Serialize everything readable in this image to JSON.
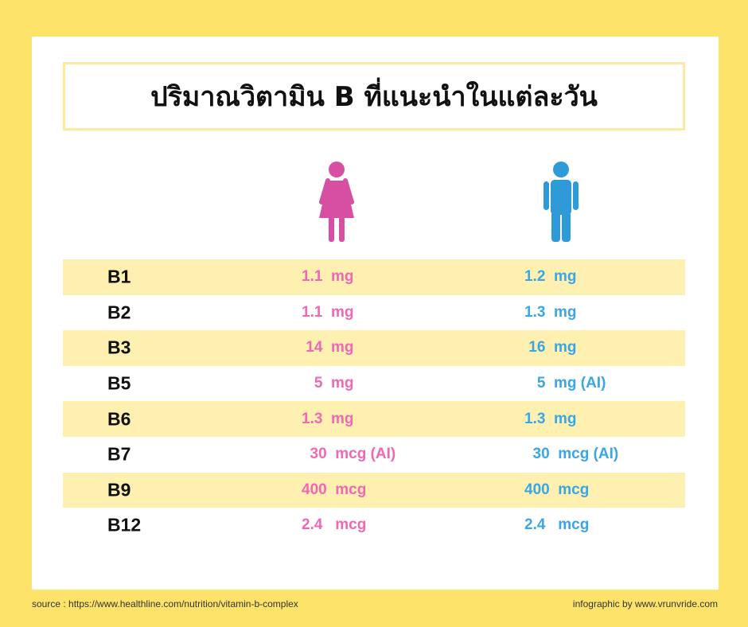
{
  "title": "ปริมาณวิตามิน B ที่แนะนำในแต่ละวัน",
  "colors": {
    "female": "#f068b4",
    "male": "#3aa6e6",
    "background": "#fde36a",
    "row_shade": "#fef0b0"
  },
  "icons": {
    "female": "female-person-icon",
    "male": "male-person-icon"
  },
  "table": {
    "rows": [
      {
        "vitamin": "B1",
        "female": "1.1  mg",
        "male": "1.2  mg"
      },
      {
        "vitamin": "B2",
        "female": "1.1  mg",
        "male": "1.3  mg"
      },
      {
        "vitamin": "B3",
        "female": " 14  mg",
        "male": " 16  mg"
      },
      {
        "vitamin": "B5",
        "female": "   5  mg",
        "male": "   5  mg (AI)"
      },
      {
        "vitamin": "B6",
        "female": "1.3  mg",
        "male": "1.3  mg"
      },
      {
        "vitamin": "B7",
        "female": "  30  mcg (AI)",
        "male": "  30  mcg (AI)"
      },
      {
        "vitamin": "B9",
        "female": "400  mcg",
        "male": "400  mcg"
      },
      {
        "vitamin": "B12",
        "female": "2.4   mcg",
        "male": "2.4   mcg"
      }
    ]
  },
  "footer": {
    "source": "source : https://www.healthline.com/nutrition/vitamin-b-complex",
    "credit": "infographic by www.vrunvride.com"
  }
}
